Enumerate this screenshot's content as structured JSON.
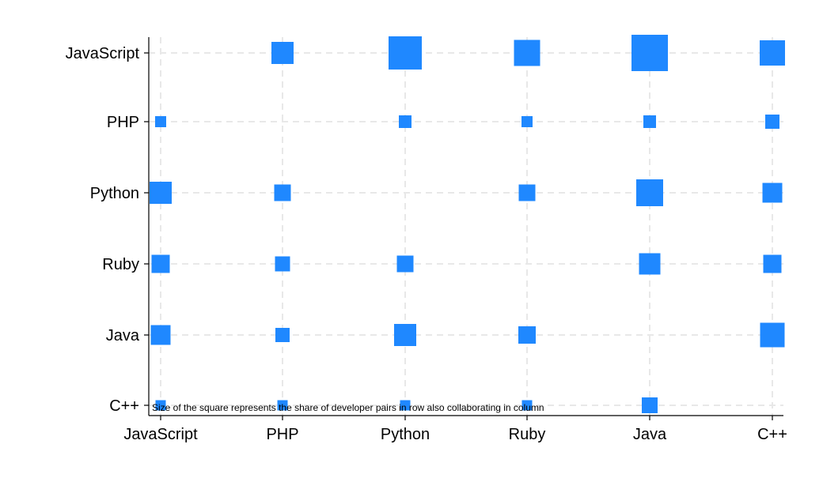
{
  "chart_data": {
    "type": "scatter",
    "title": "",
    "xlabel": "",
    "ylabel": "",
    "x_categories": [
      "JavaScript",
      "PHP",
      "Python",
      "Ruby",
      "Java",
      "C++"
    ],
    "y_categories": [
      "JavaScript",
      "PHP",
      "Python",
      "Ruby",
      "Java",
      "C++"
    ],
    "marker": "square",
    "marker_color": "#1f88ff",
    "grid": true,
    "legend": "none",
    "note": "Size of the square represents the share of developer pairs in row also collaborating in column",
    "cells": [
      {
        "row": "JavaScript",
        "col": "PHP",
        "value": 0.28
      },
      {
        "row": "JavaScript",
        "col": "Python",
        "value": 0.42
      },
      {
        "row": "JavaScript",
        "col": "Ruby",
        "value": 0.33
      },
      {
        "row": "JavaScript",
        "col": "Java",
        "value": 0.46
      },
      {
        "row": "JavaScript",
        "col": "C++",
        "value": 0.32
      },
      {
        "row": "PHP",
        "col": "JavaScript",
        "value": 0.14
      },
      {
        "row": "PHP",
        "col": "Python",
        "value": 0.16
      },
      {
        "row": "PHP",
        "col": "Ruby",
        "value": 0.14
      },
      {
        "row": "PHP",
        "col": "Java",
        "value": 0.16
      },
      {
        "row": "PHP",
        "col": "C++",
        "value": 0.18
      },
      {
        "row": "Python",
        "col": "JavaScript",
        "value": 0.28
      },
      {
        "row": "Python",
        "col": "PHP",
        "value": 0.21
      },
      {
        "row": "Python",
        "col": "Ruby",
        "value": 0.21
      },
      {
        "row": "Python",
        "col": "Java",
        "value": 0.34
      },
      {
        "row": "Python",
        "col": "C++",
        "value": 0.25
      },
      {
        "row": "Ruby",
        "col": "JavaScript",
        "value": 0.23
      },
      {
        "row": "Ruby",
        "col": "PHP",
        "value": 0.19
      },
      {
        "row": "Ruby",
        "col": "Python",
        "value": 0.21
      },
      {
        "row": "Ruby",
        "col": "Java",
        "value": 0.27
      },
      {
        "row": "Ruby",
        "col": "C++",
        "value": 0.23
      },
      {
        "row": "Java",
        "col": "JavaScript",
        "value": 0.25
      },
      {
        "row": "Java",
        "col": "PHP",
        "value": 0.18
      },
      {
        "row": "Java",
        "col": "Python",
        "value": 0.28
      },
      {
        "row": "Java",
        "col": "Ruby",
        "value": 0.22
      },
      {
        "row": "Java",
        "col": "C++",
        "value": 0.31
      },
      {
        "row": "C++",
        "col": "JavaScript",
        "value": 0.13
      },
      {
        "row": "C++",
        "col": "PHP",
        "value": 0.13
      },
      {
        "row": "C++",
        "col": "Python",
        "value": 0.13
      },
      {
        "row": "C++",
        "col": "Ruby",
        "value": 0.13
      },
      {
        "row": "C++",
        "col": "Java",
        "value": 0.2
      }
    ]
  }
}
